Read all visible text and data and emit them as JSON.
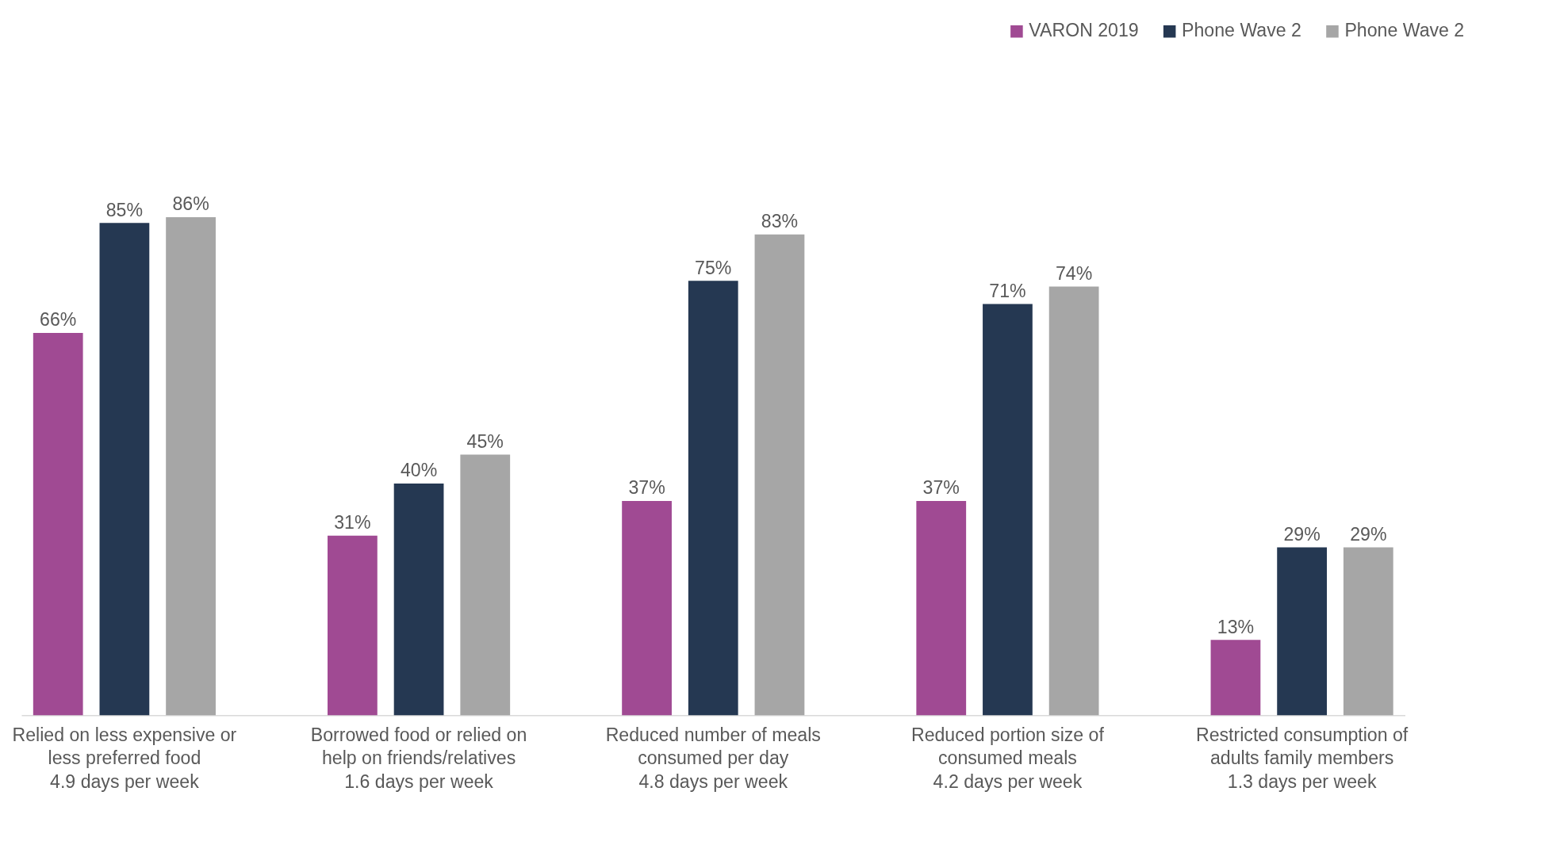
{
  "chart_data": {
    "type": "bar",
    "categories": [
      "Relied on less expensive or\nless preferred food\n4.9 days per week",
      "Borrowed food or relied on\nhelp on friends/relatives\n1.6 days per week",
      "Reduced number of meals\nconsumed per day\n4.8 days per week",
      "Reduced portion size of\nconsumed meals\n4.2 days per week",
      "Restricted consumption of\nadults family members\n1.3 days per week"
    ],
    "series": [
      {
        "name": "VARON 2019",
        "color": "#a04a93",
        "values": [
          66,
          31,
          37,
          37,
          13
        ],
        "value_labels": [
          "66%",
          "31%",
          "37%",
          "37%",
          "13%"
        ]
      },
      {
        "name": "Phone Wave 2",
        "color": "#253852",
        "values": [
          85,
          40,
          75,
          71,
          29
        ],
        "value_labels": [
          "85%",
          "40%",
          "75%",
          "71%",
          "29%"
        ]
      },
      {
        "name": "Phone Wave 2",
        "color": "#a6a6a6",
        "values": [
          86,
          45,
          83,
          74,
          29
        ],
        "value_labels": [
          "86%",
          "45%",
          "83%",
          "74%",
          "29%"
        ]
      }
    ],
    "legend": "top right",
    "grid": false
  }
}
